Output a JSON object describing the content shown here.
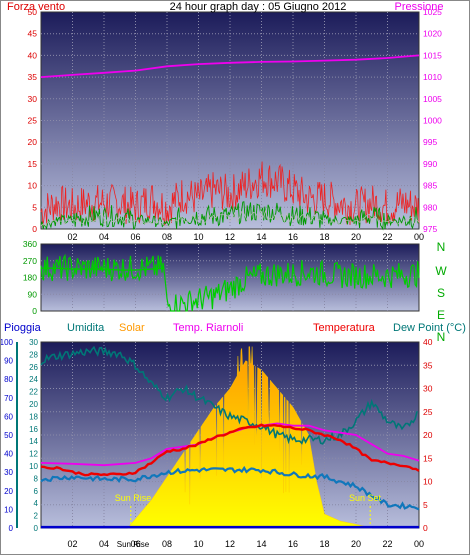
{
  "title": "24 hour graph day : 05 Giugno 2012",
  "colors": {
    "wind": "#dd0000",
    "gust": "#ee2222",
    "wind_avg": "#009900",
    "pressure": "#ee00ee",
    "direction": "#00cc00",
    "rain": "#0000cc",
    "humidity": "#007777",
    "solar_top": "#ff9900",
    "solar_bottom": "#ffff00",
    "heat_index": "#ee00ee",
    "temperature": "#ee0000",
    "dew_point": "#1177bb",
    "plot_top": "#1c1c5a",
    "plot_bottom": "#b8bedc"
  },
  "chart_data": [
    {
      "type": "line",
      "name_panel": "wind-pressure",
      "left_label": "Forza vento",
      "right_label": "Pressione",
      "x_ticks": [
        "02",
        "04",
        "06",
        "08",
        "10",
        "12",
        "14",
        "16",
        "18",
        "20",
        "22",
        "00"
      ],
      "x_range": [
        0,
        24
      ],
      "y_left_range": [
        0,
        50
      ],
      "y_left_ticks": [
        0,
        5,
        10,
        15,
        20,
        25,
        30,
        35,
        40,
        45,
        50
      ],
      "y_right_range": [
        975,
        1025
      ],
      "y_right_ticks": [
        975,
        980,
        985,
        990,
        995,
        1000,
        1005,
        1010,
        1015,
        1020,
        1025
      ],
      "series": [
        {
          "key": "gust",
          "axis": "left",
          "x": [
            0,
            1,
            2,
            3,
            4,
            5,
            6,
            7,
            8,
            9,
            10,
            11,
            12,
            13,
            14,
            15,
            16,
            17,
            18,
            19,
            20,
            21,
            22,
            23,
            24
          ],
          "y": [
            4,
            6,
            5,
            6,
            6,
            6,
            5,
            7,
            5,
            8,
            7,
            9,
            8,
            10,
            12,
            11,
            9,
            7,
            7,
            6,
            5,
            6,
            5,
            6,
            5
          ]
        },
        {
          "key": "wind_avg",
          "axis": "left",
          "x": [
            0,
            1,
            2,
            3,
            4,
            5,
            6,
            7,
            8,
            9,
            10,
            11,
            12,
            13,
            14,
            15,
            16,
            17,
            18,
            19,
            20,
            21,
            22,
            23,
            24
          ],
          "y": [
            1,
            2,
            2,
            3,
            3,
            3,
            2,
            2,
            1,
            3,
            3,
            3,
            3,
            4,
            4,
            4,
            3,
            3,
            2,
            2,
            2,
            3,
            2,
            2,
            3
          ]
        },
        {
          "key": "pressure",
          "axis": "right",
          "x": [
            0,
            2,
            4,
            6,
            8,
            10,
            12,
            14,
            16,
            18,
            20,
            22,
            24
          ],
          "y": [
            1010,
            1010.5,
            1011,
            1011.5,
            1012.5,
            1013,
            1013.3,
            1013.5,
            1013.6,
            1013.8,
            1014,
            1014.4,
            1015
          ]
        }
      ]
    },
    {
      "type": "line",
      "name_panel": "wind-direction",
      "x_range": [
        0,
        24
      ],
      "y_range": [
        0,
        360
      ],
      "y_ticks": [
        0,
        90,
        180,
        270,
        360
      ],
      "right_labels": [
        "N",
        "W",
        "S",
        "E",
        "N"
      ],
      "series": [
        {
          "key": "direction",
          "x": [
            0,
            1,
            2,
            3,
            4,
            5,
            6,
            7,
            7.8,
            8,
            9,
            10,
            11,
            12,
            13,
            14,
            15,
            16,
            17,
            18,
            19,
            20,
            21,
            22,
            23,
            24
          ],
          "y": [
            230,
            230,
            225,
            225,
            225,
            220,
            220,
            225,
            230,
            30,
            40,
            60,
            80,
            120,
            170,
            190,
            200,
            200,
            210,
            200,
            190,
            190,
            190,
            190,
            195,
            200
          ]
        }
      ]
    },
    {
      "type": "line",
      "name_panel": "temperature-solar",
      "labels": [
        "Pioggia",
        "Umidita",
        "Solar",
        "Temp. Riarnoli",
        "Temperatura",
        "Dew Point (°C)"
      ],
      "x_ticks": [
        "02",
        "04",
        "06",
        "08",
        "10",
        "12",
        "14",
        "16",
        "18",
        "20",
        "22",
        "00"
      ],
      "x_range": [
        0,
        24
      ],
      "y_rain_ticks": [
        0,
        10,
        20,
        30,
        40,
        50,
        60,
        70,
        80,
        90,
        100
      ],
      "y_humidity_ticks": [
        0,
        2,
        4,
        6,
        8,
        10,
        12,
        14,
        16,
        18,
        20,
        22,
        24,
        26,
        28,
        30
      ],
      "y_temp_range": [
        0,
        40
      ],
      "y_temp_ticks": [
        0,
        5,
        10,
        15,
        20,
        25,
        30,
        35,
        40
      ],
      "sun_rise_label": "Sun Rise",
      "sun_set_label": "Sun Set",
      "sun_rise_hour": 5.7,
      "sun_set_hour": 20.9,
      "bottom_sun_label": "Sun Rise",
      "series": [
        {
          "key": "humidity",
          "axis": "temp",
          "x": [
            0,
            1,
            2,
            3,
            4,
            5,
            6,
            7,
            8,
            9,
            10,
            11,
            12,
            13,
            14,
            15,
            16,
            17,
            18,
            19,
            20,
            21,
            22,
            23,
            24
          ],
          "y": [
            36,
            37,
            37.5,
            38,
            38,
            37.5,
            35,
            31,
            28,
            30,
            28,
            26,
            24,
            23,
            22,
            20,
            19,
            19,
            19,
            20,
            23,
            27,
            23,
            21,
            25
          ]
        },
        {
          "key": "solar",
          "axis": "temp",
          "x": [
            5.5,
            6,
            7,
            8,
            9,
            10,
            11,
            12,
            13,
            14,
            15,
            16,
            17,
            17.5,
            18,
            19,
            20,
            21
          ],
          "y": [
            0,
            2,
            6,
            11,
            16,
            21,
            26,
            30,
            36,
            34,
            30,
            26,
            20,
            10,
            3,
            1.5,
            0.8,
            0
          ]
        },
        {
          "key": "heat_index",
          "axis": "temp",
          "x": [
            0,
            2,
            4,
            6,
            7,
            8,
            9,
            10,
            11,
            12,
            13,
            14,
            15,
            16,
            17,
            18,
            19,
            20,
            21,
            22,
            23,
            24
          ],
          "y": [
            14,
            13.8,
            13.5,
            14,
            15,
            17,
            17.5,
            18,
            19.5,
            20.5,
            21.5,
            22,
            22.5,
            22,
            22,
            21,
            20.5,
            20,
            18,
            16,
            15.5,
            14.5
          ]
        },
        {
          "key": "temperature",
          "axis": "temp",
          "x": [
            0,
            1,
            2,
            3,
            4,
            5,
            6,
            7,
            8,
            9,
            10,
            11,
            12,
            13,
            14,
            15,
            16,
            17,
            18,
            19,
            20,
            21,
            22,
            23,
            24
          ],
          "y": [
            13,
            13,
            12,
            11.5,
            11.5,
            11.5,
            12,
            14,
            16.5,
            17,
            18,
            19.5,
            20.5,
            21.5,
            22,
            22,
            21.5,
            21,
            20,
            19,
            17,
            14.5,
            14,
            13.5,
            12.5
          ]
        },
        {
          "key": "dew_point",
          "axis": "temp",
          "x": [
            0,
            2,
            4,
            6,
            8,
            10,
            12,
            14,
            16,
            18,
            20,
            22,
            24
          ],
          "y": [
            10.5,
            11,
            10.5,
            10.5,
            12,
            12.5,
            12.5,
            12.5,
            11.5,
            11,
            9,
            5,
            4.5
          ]
        },
        {
          "key": "rain",
          "axis": "temp",
          "x": [
            0,
            24
          ],
          "y": [
            0,
            0
          ]
        }
      ]
    }
  ]
}
